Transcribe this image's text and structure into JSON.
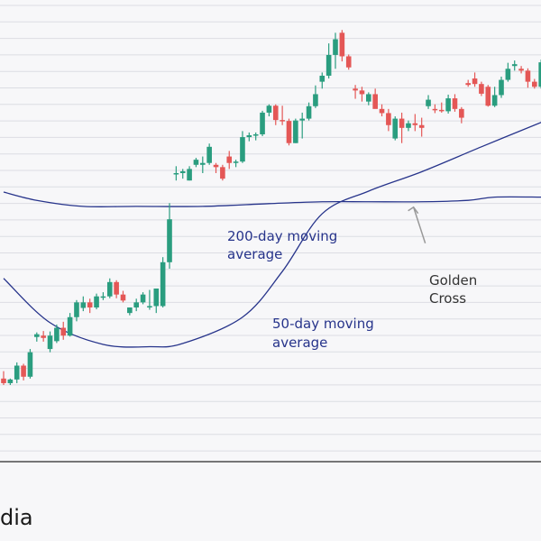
{
  "chart_data": {
    "type": "candlestick",
    "title": "",
    "xlabel": "",
    "ylabel": "",
    "ylim": [
      0,
      100
    ],
    "grid": true,
    "colors": {
      "up": "#2a9d7f",
      "down": "#e45756",
      "ma": "#27348b",
      "arrow": "#999999"
    },
    "candles": [
      {
        "o": 18,
        "h": 19.6,
        "l": 16.6,
        "c": 17
      },
      {
        "o": 17,
        "h": 18,
        "l": 16.6,
        "c": 17.8
      },
      {
        "o": 17.8,
        "h": 21.5,
        "l": 17,
        "c": 20.8
      },
      {
        "o": 20.8,
        "h": 21.2,
        "l": 17.6,
        "c": 18.4
      },
      {
        "o": 18.4,
        "h": 24.4,
        "l": 18,
        "c": 23.7
      },
      {
        "o": 27,
        "h": 28,
        "l": 26,
        "c": 27.6
      },
      {
        "o": 27.3,
        "h": 28.3,
        "l": 26,
        "c": 26.8
      },
      {
        "o": 24.4,
        "h": 28.2,
        "l": 23.7,
        "c": 27.3
      },
      {
        "o": 26.1,
        "h": 29.7,
        "l": 25.7,
        "c": 29
      },
      {
        "o": 29,
        "h": 30.3,
        "l": 26.4,
        "c": 27.3
      },
      {
        "o": 27.3,
        "h": 32.2,
        "l": 27.1,
        "c": 31.3
      },
      {
        "o": 31.3,
        "h": 35,
        "l": 30.4,
        "c": 34.5
      },
      {
        "o": 33.3,
        "h": 35.8,
        "l": 32.6,
        "c": 34.5
      },
      {
        "o": 34.5,
        "h": 35.3,
        "l": 32.2,
        "c": 33.4
      },
      {
        "o": 33.4,
        "h": 36.4,
        "l": 33,
        "c": 35.8
      },
      {
        "o": 35.8,
        "h": 36.7,
        "l": 35,
        "c": 35.8
      },
      {
        "o": 35.8,
        "h": 39.7,
        "l": 35.4,
        "c": 38.9
      },
      {
        "o": 38.9,
        "h": 39.3,
        "l": 35.4,
        "c": 36.2
      },
      {
        "o": 36.2,
        "h": 37,
        "l": 34.5,
        "c": 34.9
      },
      {
        "o": 32.2,
        "h": 33.4,
        "l": 31.7,
        "c": 33.4
      },
      {
        "o": 33.4,
        "h": 35.3,
        "l": 32.6,
        "c": 34.5
      },
      {
        "o": 34.5,
        "h": 36.7,
        "l": 34.1,
        "c": 36.2
      },
      {
        "o": 33.4,
        "h": 37.2,
        "l": 32.9,
        "c": 33.7
      },
      {
        "o": 33.7,
        "h": 37.5,
        "l": 32.2,
        "c": 37.5
      },
      {
        "o": 33.7,
        "h": 44.3,
        "l": 33.4,
        "c": 43.2
      },
      {
        "o": 43.2,
        "h": 56,
        "l": 41.8,
        "c": 52.5
      },
      {
        "o": 62.3,
        "h": 64,
        "l": 60.9,
        "c": 62.5
      },
      {
        "o": 62.5,
        "h": 63.4,
        "l": 61.3,
        "c": 62.9
      },
      {
        "o": 60.9,
        "h": 64,
        "l": 60.9,
        "c": 63.4
      },
      {
        "o": 64.3,
        "h": 65.8,
        "l": 63.8,
        "c": 65.4
      },
      {
        "o": 64.3,
        "h": 66.1,
        "l": 62.5,
        "c": 64.7
      },
      {
        "o": 64.7,
        "h": 68.9,
        "l": 64.3,
        "c": 68.2
      },
      {
        "o": 64.3,
        "h": 64.7,
        "l": 62.5,
        "c": 63.8
      },
      {
        "o": 63.8,
        "h": 64.3,
        "l": 60.9,
        "c": 61.3
      },
      {
        "o": 66.1,
        "h": 67.3,
        "l": 63.4,
        "c": 64.7
      },
      {
        "o": 64.7,
        "h": 65.4,
        "l": 63.8,
        "c": 65
      },
      {
        "o": 65,
        "h": 71.6,
        "l": 64.7,
        "c": 70.3
      },
      {
        "o": 70.3,
        "h": 71.3,
        "l": 69.4,
        "c": 70.7
      },
      {
        "o": 70.7,
        "h": 71.3,
        "l": 69.6,
        "c": 70.9
      },
      {
        "o": 70.9,
        "h": 76,
        "l": 70.5,
        "c": 75.6
      },
      {
        "o": 75.6,
        "h": 77.4,
        "l": 74.8,
        "c": 77.1
      },
      {
        "o": 77.1,
        "h": 77.4,
        "l": 72.9,
        "c": 74
      },
      {
        "o": 74,
        "h": 77.1,
        "l": 72.9,
        "c": 73.8
      },
      {
        "o": 73.8,
        "h": 74.3,
        "l": 68.5,
        "c": 69
      },
      {
        "o": 69,
        "h": 74.3,
        "l": 69,
        "c": 73.9
      },
      {
        "o": 73.9,
        "h": 75.6,
        "l": 70,
        "c": 74.3
      },
      {
        "o": 74.3,
        "h": 77.8,
        "l": 73.9,
        "c": 77
      },
      {
        "o": 77,
        "h": 81.5,
        "l": 76.6,
        "c": 79.6
      },
      {
        "o": 82.3,
        "h": 84.3,
        "l": 80.8,
        "c": 83.6
      },
      {
        "o": 83.6,
        "h": 90.6,
        "l": 83,
        "c": 88.1
      },
      {
        "o": 88.1,
        "h": 92.9,
        "l": 85.1,
        "c": 91.5
      },
      {
        "o": 92.9,
        "h": 93.5,
        "l": 86.7,
        "c": 87.8
      },
      {
        "o": 87.8,
        "h": 88.2,
        "l": 84.9,
        "c": 85.4
      },
      {
        "o": 80.8,
        "h": 81.6,
        "l": 78.6,
        "c": 80.4
      },
      {
        "o": 80.4,
        "h": 81.2,
        "l": 78,
        "c": 79.6
      },
      {
        "o": 78,
        "h": 80,
        "l": 77.2,
        "c": 79.6
      },
      {
        "o": 79.6,
        "h": 80.8,
        "l": 77,
        "c": 76.4
      },
      {
        "o": 76.4,
        "h": 77.4,
        "l": 74.8,
        "c": 75.5
      },
      {
        "o": 75.5,
        "h": 76.4,
        "l": 71.6,
        "c": 72.9
      },
      {
        "o": 70,
        "h": 74.8,
        "l": 69.6,
        "c": 74.3
      },
      {
        "o": 74.3,
        "h": 75.6,
        "l": 69,
        "c": 72.3
      },
      {
        "o": 72.3,
        "h": 73.9,
        "l": 71.6,
        "c": 73.3
      },
      {
        "o": 73.3,
        "h": 75.3,
        "l": 71.6,
        "c": 72.9
      },
      {
        "o": 72.9,
        "h": 74.5,
        "l": 70.4,
        "c": 72.3
      },
      {
        "o": 77,
        "h": 79.4,
        "l": 76.4,
        "c": 78.4
      },
      {
        "o": 76.4,
        "h": 77.4,
        "l": 75.5,
        "c": 76.2
      },
      {
        "o": 76.2,
        "h": 77.8,
        "l": 75.6,
        "c": 75.9
      },
      {
        "o": 75.9,
        "h": 79.5,
        "l": 75.4,
        "c": 78.7
      },
      {
        "o": 78.7,
        "h": 79.6,
        "l": 75.8,
        "c": 76.4
      },
      {
        "o": 76.4,
        "h": 76.8,
        "l": 73.3,
        "c": 74.5
      },
      {
        "o": 82,
        "h": 82.7,
        "l": 81.2,
        "c": 81.6
      },
      {
        "o": 83,
        "h": 84.3,
        "l": 81.2,
        "c": 81.8
      },
      {
        "o": 81.8,
        "h": 82.3,
        "l": 79.2,
        "c": 79.7
      },
      {
        "o": 81.2,
        "h": 81.6,
        "l": 76.9,
        "c": 77.1
      },
      {
        "o": 77.1,
        "h": 81.2,
        "l": 76.8,
        "c": 79.4
      },
      {
        "o": 79.4,
        "h": 83.4,
        "l": 78.8,
        "c": 82.7
      },
      {
        "o": 82.7,
        "h": 86.4,
        "l": 82.3,
        "c": 85.1
      },
      {
        "o": 85.7,
        "h": 86.9,
        "l": 84.7,
        "c": 86.1
      },
      {
        "o": 85.1,
        "h": 85.7,
        "l": 84.1,
        "c": 84.7
      },
      {
        "o": 84.7,
        "h": 85.2,
        "l": 81,
        "c": 82.3
      },
      {
        "o": 82.3,
        "h": 82.9,
        "l": 80.8,
        "c": 81.2
      },
      {
        "o": 81.2,
        "h": 87.1,
        "l": 80.8,
        "c": 86.5
      }
    ],
    "series": [
      {
        "name": "50-day moving average",
        "x": [
          0,
          7,
          15,
          22,
          27,
          36,
          42,
          48,
          55,
          63,
          72,
          81
        ],
        "y": [
          39.7,
          30.1,
          25.4,
          24.9,
          25.6,
          31.3,
          41.2,
          53.7,
          58.6,
          62.8,
          68.2,
          73.5
        ]
      },
      {
        "name": "200-day moving average",
        "x": [
          0,
          5,
          12,
          20,
          30,
          40,
          48,
          55,
          63,
          70,
          74,
          81
        ],
        "y": [
          58.4,
          56.6,
          55.3,
          55.3,
          55.3,
          55.9,
          56.3,
          56.3,
          56.3,
          56.6,
          57.3,
          57.3
        ]
      }
    ],
    "annotations": {
      "ma200_line1": "200-day moving",
      "ma200_line2": "average",
      "ma50_line1": "50-day moving",
      "ma50_line2": "average",
      "cross_line1": "Golden",
      "cross_line2": "Cross"
    },
    "golden_cross": {
      "x": 61.5,
      "y": 56.3
    }
  },
  "branding": {
    "logo_text": "dia"
  }
}
